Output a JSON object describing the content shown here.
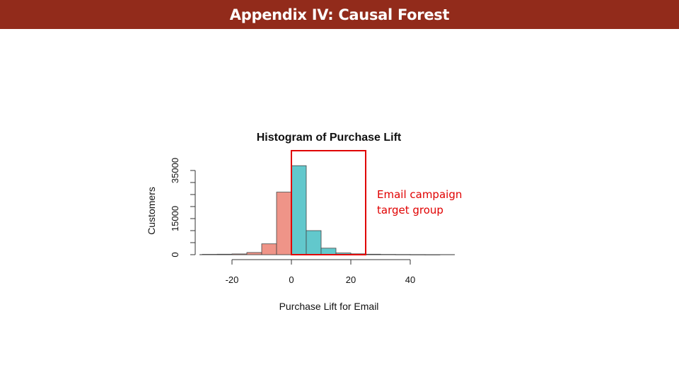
{
  "slide": {
    "title": "Appendix IV: Causal Forest"
  },
  "annotation": {
    "line1": "Email campaign",
    "line2": "target group",
    "color": "#e00000"
  },
  "chart_data": {
    "type": "bar",
    "title": "Histogram of Purchase Lift",
    "xlabel": "Purchase Lift for Email",
    "ylabel": "Customers",
    "bin_edges": [
      -30,
      -25,
      -20,
      -15,
      -10,
      -5,
      0,
      5,
      10,
      15,
      20,
      25,
      30,
      35,
      40,
      45,
      50
    ],
    "counts": [
      150,
      200,
      300,
      900,
      4500,
      26000,
      37000,
      10000,
      2700,
      700,
      350,
      200,
      120,
      80,
      50,
      30
    ],
    "xticks": [
      -20,
      0,
      20,
      40
    ],
    "xtick_labels": [
      "-20",
      "0",
      "20",
      "40"
    ],
    "yticks": [
      0,
      5000,
      10000,
      15000,
      20000,
      25000,
      30000,
      35000
    ],
    "ytick_labels": [
      "0",
      "",
      "",
      "15000",
      "",
      "",
      "",
      "35000"
    ],
    "ylim": [
      0,
      35000
    ],
    "xlim": [
      -30,
      55
    ],
    "colors": {
      "negative": "#ef9488",
      "positive": "#62c8cc",
      "target_box": "#e00000"
    },
    "target_range": [
      0,
      25
    ]
  }
}
